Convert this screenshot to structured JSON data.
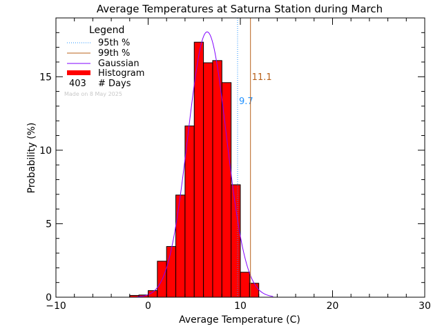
{
  "chart_data": {
    "type": "bar",
    "title": "Average Temperatures at Saturna Station during March",
    "xlabel": "Average Temperature (C)",
    "ylabel": "Probability (%)",
    "xlim": [
      -10,
      30
    ],
    "ylim": [
      0,
      19
    ],
    "x_ticks": [
      -10,
      0,
      10,
      20,
      30
    ],
    "y_ticks": [
      0,
      5,
      10,
      15
    ],
    "histogram": {
      "name": "Histogram",
      "color": "#ff0000",
      "bin_edges": [
        -2,
        -1,
        0,
        1,
        2,
        3,
        4,
        5,
        6,
        7,
        8,
        9,
        10,
        11,
        12
      ],
      "values": [
        0.12,
        0.15,
        0.45,
        2.45,
        3.45,
        6.95,
        11.65,
        17.35,
        15.95,
        16.1,
        14.6,
        7.65,
        1.7,
        0.95
      ]
    },
    "gaussian": {
      "name": "Gaussian",
      "color": "#8000ff",
      "mean": 6.4,
      "sigma": 2.1,
      "peak": 18.05
    },
    "percentiles": [
      {
        "name": "95th %",
        "value": 9.7,
        "label": "9.7",
        "color": "#1e90ff",
        "style": "dotted"
      },
      {
        "name": "99th %",
        "value": 11.1,
        "label": "11.1",
        "color": "#b8601a",
        "style": "solid"
      }
    ],
    "legend": {
      "title": "Legend",
      "placement": "top-left",
      "entries": [
        "95th %",
        "99th %",
        "Gaussian",
        "Histogram"
      ],
      "count_value": "403",
      "count_label": "# Days"
    },
    "note": "Made on 8 May 2025"
  }
}
